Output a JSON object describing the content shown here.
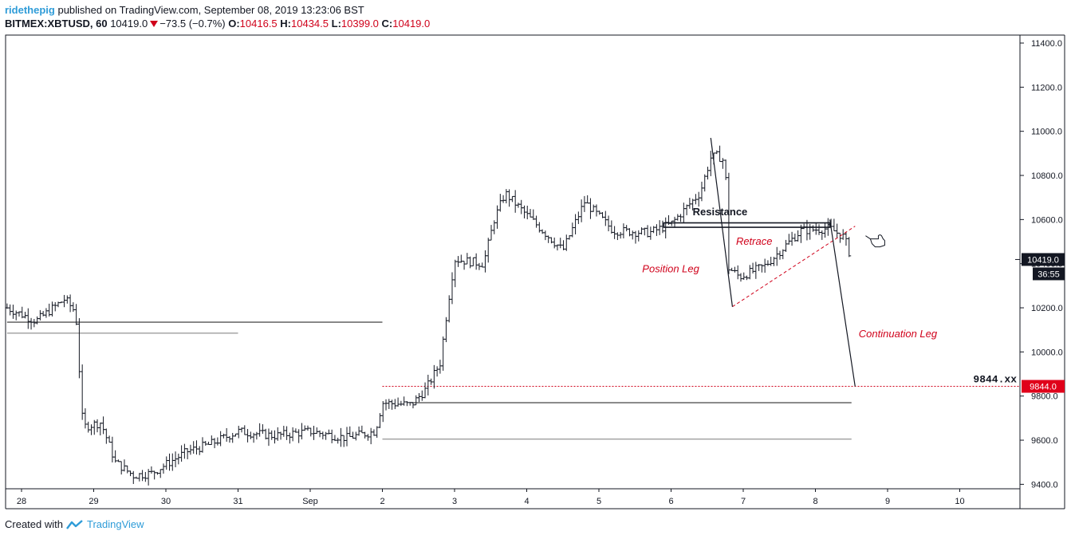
{
  "header": {
    "author": "ridethepig",
    "published": "published on TradingView.com, September 08, 2019 13:23:06 BST",
    "symbol": "BITMEX:XBTUSD, 60",
    "last": "10419.0",
    "change": "−73.5 (−0.7%)",
    "open_label": "O:",
    "open": "10416.5",
    "high_label": "H:",
    "high": "10434.5",
    "low_label": "L:",
    "low": "10399.0",
    "close_label": "C:",
    "close": "10419.0"
  },
  "footer": {
    "created_with": "Created with",
    "brand": "TradingView"
  },
  "colors": {
    "text": "#131722",
    "red": "#d0021b",
    "blue": "#2f9cd8",
    "price_label_bg": "#131722",
    "alert_label_bg": "#e0001a",
    "level_dark": "#555555",
    "level_light": "#9e9e9e"
  },
  "chart_data": {
    "type": "ohlc",
    "interval": "60",
    "x_axis_labels": [
      "28",
      "29",
      "30",
      "31",
      "Sep",
      "2",
      "3",
      "4",
      "5",
      "6",
      "7",
      "8",
      "9",
      "10"
    ],
    "y_axis_labels": [
      "11400.0",
      "11200.0",
      "11000.0",
      "10800.0",
      "10600.0",
      "10400.0",
      "10200.0",
      "10000.0",
      "9800.0",
      "9600.0",
      "9400.0"
    ],
    "ylim": [
      9380,
      11480
    ],
    "xlim": [
      27.8,
      11.9
    ],
    "price_path": [
      {
        "day": 27.8,
        "price": 10200
      },
      {
        "day": 28.2,
        "price": 10140
      },
      {
        "day": 28.6,
        "price": 10240
      },
      {
        "day": 28.75,
        "price": 10180
      },
      {
        "day": 28.85,
        "price": 9660
      },
      {
        "day": 29.1,
        "price": 9680
      },
      {
        "day": 29.3,
        "price": 9500
      },
      {
        "day": 29.55,
        "price": 9440
      },
      {
        "day": 29.8,
        "price": 9450
      },
      {
        "day": 30.0,
        "price": 9490
      },
      {
        "day": 30.3,
        "price": 9550
      },
      {
        "day": 30.6,
        "price": 9580
      },
      {
        "day": 31.0,
        "price": 9640
      },
      {
        "day": 31.5,
        "price": 9620
      },
      {
        "day": 32.0,
        "price": 9640
      },
      {
        "day": 32.5,
        "price": 9610
      },
      {
        "day": 32.9,
        "price": 9640
      },
      {
        "day": 33.0,
        "price": 9770
      },
      {
        "day": 33.4,
        "price": 9760
      },
      {
        "day": 33.6,
        "price": 9830
      },
      {
        "day": 33.8,
        "price": 9950
      },
      {
        "day": 33.9,
        "price": 10200
      },
      {
        "day": 34.0,
        "price": 10420
      },
      {
        "day": 34.4,
        "price": 10400
      },
      {
        "day": 34.55,
        "price": 10600
      },
      {
        "day": 34.7,
        "price": 10720
      },
      {
        "day": 35.0,
        "price": 10620
      },
      {
        "day": 35.5,
        "price": 10460
      },
      {
        "day": 35.8,
        "price": 10680
      },
      {
        "day": 36.2,
        "price": 10550
      },
      {
        "day": 36.7,
        "price": 10540
      },
      {
        "day": 37.0,
        "price": 10580
      },
      {
        "day": 37.4,
        "price": 10720
      },
      {
        "day": 37.55,
        "price": 10880
      },
      {
        "day": 37.65,
        "price": 10890
      },
      {
        "day": 37.75,
        "price": 10860
      },
      {
        "day": 37.8,
        "price": 10380
      },
      {
        "day": 37.95,
        "price": 10340
      },
      {
        "day": 38.3,
        "price": 10390
      },
      {
        "day": 38.8,
        "price": 10550
      },
      {
        "day": 39.2,
        "price": 10560
      },
      {
        "day": 39.4,
        "price": 10520
      },
      {
        "day": 39.5,
        "price": 10419
      }
    ],
    "last_price": 10419.0,
    "last_price_label": "10419.0",
    "countdown": "36:55",
    "alert_level": 9844.0,
    "alert_level_label": "9844.0",
    "target_label": "9844.xx",
    "levels": [
      {
        "price": 10135,
        "from": 27.8,
        "to": 33.0,
        "style": "dark"
      },
      {
        "price": 10085,
        "from": 27.8,
        "to": 31.0,
        "style": "light"
      },
      {
        "price": 9770,
        "from": 33.4,
        "to": 39.5,
        "style": "dark"
      },
      {
        "price": 9605,
        "from": 33.0,
        "to": 39.5,
        "style": "light"
      },
      {
        "price": 9844,
        "from": 33.0,
        "to": 42.0,
        "style": "red-dotted"
      }
    ],
    "annotations": {
      "resistance": "Resistance",
      "retrace": "Retrace",
      "position_leg": "Position Leg",
      "continuation_leg": "Continuation Leg"
    },
    "resistance_zone": {
      "top": 10585,
      "bottom": 10565,
      "from": 36.9,
      "to": 39.2
    },
    "retrace_channel": {
      "from": {
        "day": 37.85,
        "price": 10205
      },
      "to": {
        "day": 39.55,
        "price": 10570
      }
    },
    "position_leg_line": {
      "from": {
        "day": 37.55,
        "price": 10970
      },
      "to": {
        "day": 37.85,
        "price": 10205
      }
    },
    "continuation_leg_line": {
      "from": {
        "day": 39.2,
        "price": 10600
      },
      "to": {
        "day": 39.55,
        "price": 9844
      }
    }
  }
}
